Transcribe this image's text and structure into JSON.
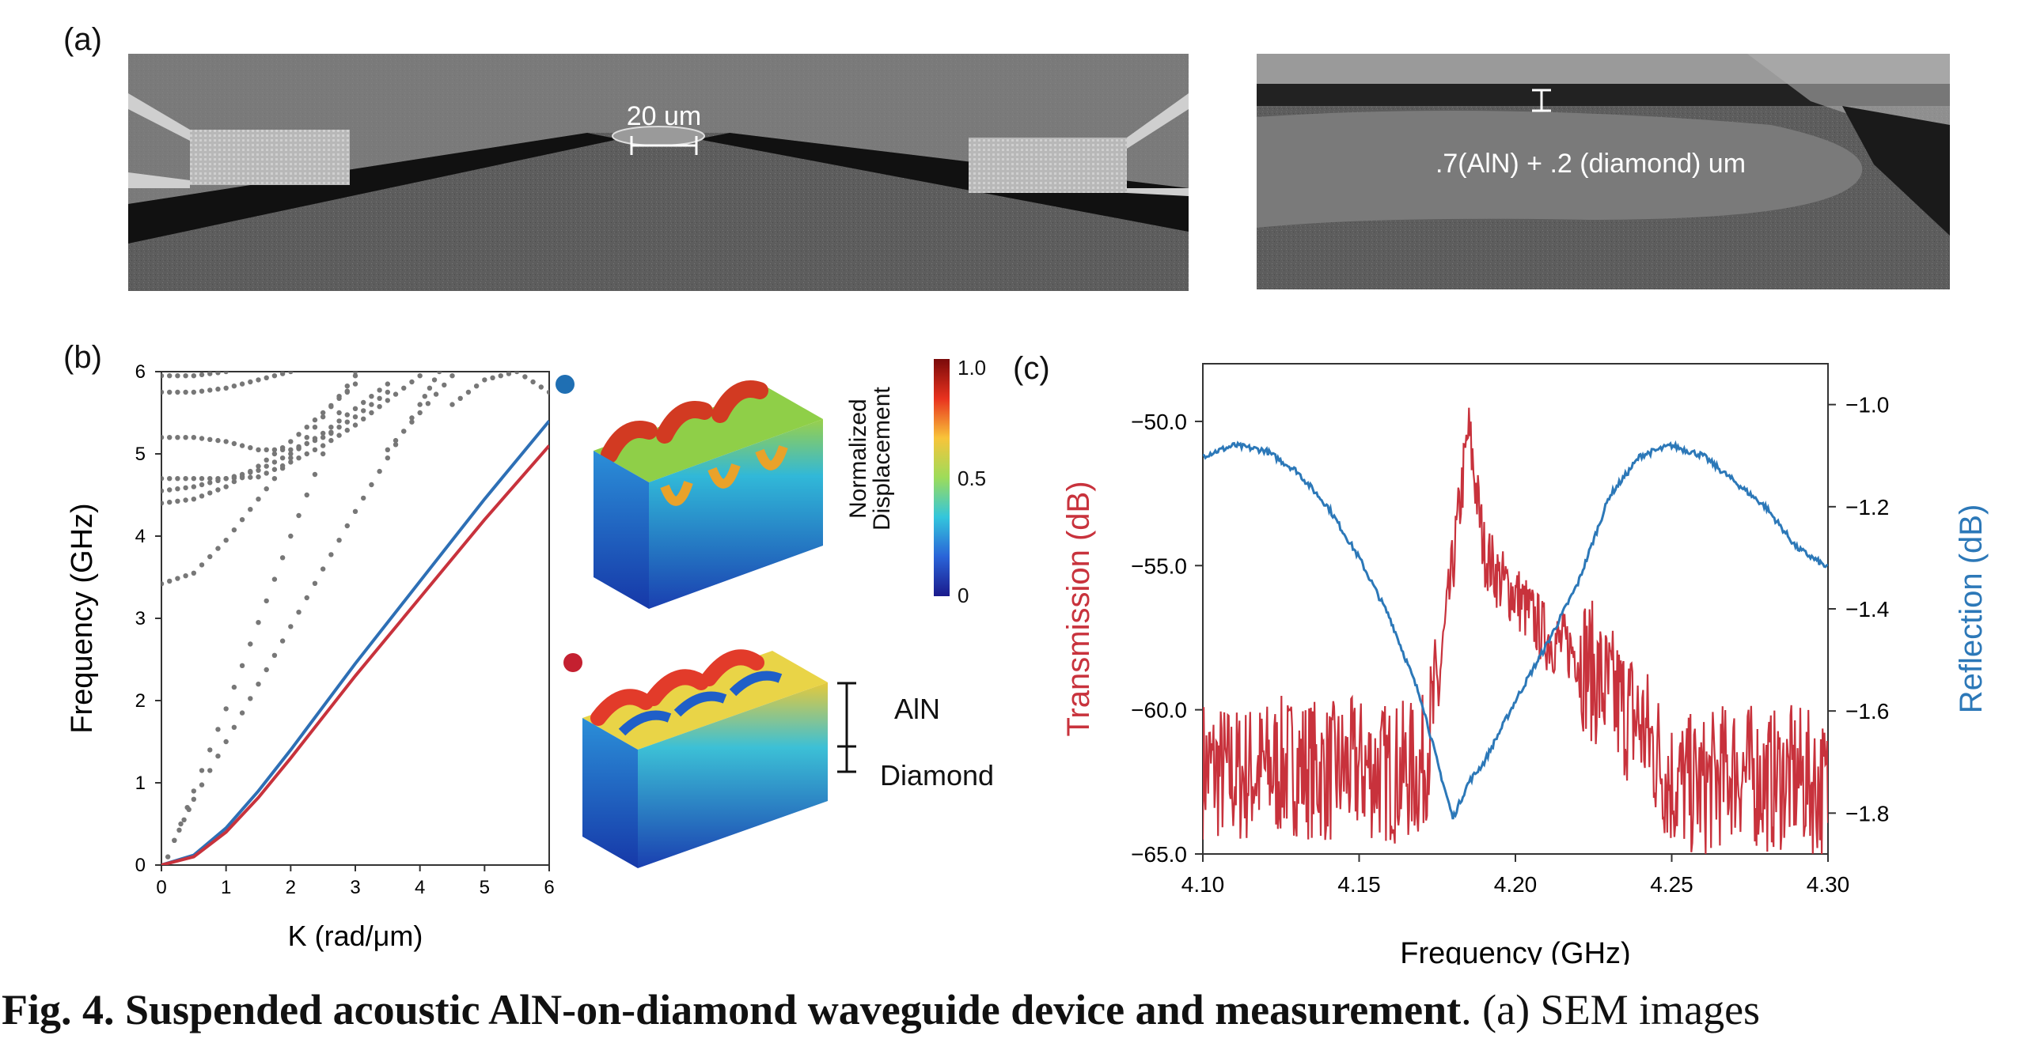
{
  "panels": {
    "a": {
      "label": "(a)",
      "sem_left_scale": "20 um",
      "sem_right_label": ".7(AlN) + .2 (diamond) um"
    },
    "b": {
      "label": "(b)",
      "colorbar_title": "Normalized Displacement",
      "colorbar_ticks": [
        "1.0",
        "0.5",
        "0"
      ],
      "layer_top": "AlN",
      "layer_bottom": "Diamond",
      "marker_colors": {
        "blue": "#1f6fb3",
        "red": "#c42030"
      }
    },
    "c": {
      "label": "(c)"
    }
  },
  "chart_data": [
    {
      "type": "line",
      "xlabel": "K (rad/μm)",
      "ylabel": "Frequency (GHz)",
      "xlim": [
        0,
        6
      ],
      "ylim": [
        0,
        6
      ],
      "x_ticks": [
        "0",
        "1",
        "2",
        "3",
        "4",
        "5",
        "6"
      ],
      "y_ticks": [
        "0",
        "1",
        "2",
        "3",
        "4",
        "5",
        "6"
      ],
      "grid": false,
      "series": [
        {
          "color": "#2d6fb5",
          "points": [
            [
              0,
              0
            ],
            [
              0.5,
              0.12
            ],
            [
              1,
              0.45
            ],
            [
              1.5,
              0.9
            ],
            [
              2,
              1.4
            ],
            [
              3,
              2.45
            ],
            [
              4,
              3.45
            ],
            [
              5,
              4.45
            ],
            [
              6,
              5.4
            ]
          ]
        },
        {
          "color": "#c8323c",
          "points": [
            [
              0,
              0
            ],
            [
              0.5,
              0.1
            ],
            [
              1,
              0.4
            ],
            [
              1.5,
              0.82
            ],
            [
              2,
              1.3
            ],
            [
              3,
              2.3
            ],
            [
              4,
              3.25
            ],
            [
              5,
              4.2
            ],
            [
              6,
              5.1
            ]
          ]
        }
      ],
      "dotted_series": [
        {
          "points": [
            [
              0,
              3.42
            ],
            [
              0.5,
              3.55
            ],
            [
              1,
              3.95
            ],
            [
              1.5,
              4.45
            ],
            [
              2,
              4.95
            ],
            [
              2.5,
              5.45
            ],
            [
              3,
              5.95
            ]
          ]
        },
        {
          "points": [
            [
              0,
              4.4
            ],
            [
              0.5,
              4.45
            ],
            [
              1,
              4.6
            ],
            [
              1.5,
              4.85
            ],
            [
              2,
              5.15
            ],
            [
              2.5,
              5.5
            ],
            [
              3,
              5.85
            ]
          ]
        },
        {
          "points": [
            [
              0,
              4.55
            ],
            [
              0.5,
              4.6
            ],
            [
              1,
              4.7
            ],
            [
              1.5,
              4.8
            ],
            [
              2,
              5.0
            ],
            [
              2.5,
              5.25
            ],
            [
              3,
              5.55
            ],
            [
              3.5,
              5.85
            ]
          ]
        },
        {
          "points": [
            [
              0,
              4.7
            ],
            [
              0.5,
              4.7
            ],
            [
              1,
              4.7
            ],
            [
              1.5,
              4.72
            ],
            [
              2,
              4.9
            ],
            [
              2.5,
              5.1
            ],
            [
              3,
              5.35
            ],
            [
              3.5,
              5.65
            ],
            [
              4,
              5.95
            ]
          ]
        },
        {
          "points": [
            [
              0,
              5.2
            ],
            [
              0.5,
              5.2
            ],
            [
              1,
              5.15
            ],
            [
              1.5,
              5.05
            ],
            [
              2,
              5.05
            ],
            [
              2.5,
              5.2
            ],
            [
              3,
              5.45
            ],
            [
              3.5,
              5.75
            ]
          ]
        },
        {
          "points": [
            [
              0,
              5.75
            ],
            [
              0.5,
              5.75
            ],
            [
              1,
              5.8
            ],
            [
              1.5,
              5.9
            ],
            [
              2,
              6.0
            ]
          ]
        },
        {
          "points": [
            [
              0,
              5.95
            ],
            [
              0.5,
              5.95
            ],
            [
              1,
              6.0
            ]
          ]
        },
        {
          "points": [
            [
              0.1,
              0.1
            ],
            [
              0.5,
              0.9
            ],
            [
              1,
              1.9
            ],
            [
              1.5,
              2.95
            ],
            [
              2,
              4.0
            ],
            [
              2.5,
              5.0
            ],
            [
              3,
              6.0
            ]
          ]
        },
        {
          "points": [
            [
              0.2,
              0.3
            ],
            [
              0.5,
              0.8
            ],
            [
              1,
              1.5
            ],
            [
              1.5,
              2.2
            ],
            [
              2,
              2.9
            ],
            [
              2.5,
              3.6
            ],
            [
              3,
              4.3
            ],
            [
              3.5,
              4.95
            ],
            [
              4,
              5.6
            ],
            [
              4.3,
              6.0
            ]
          ]
        },
        {
          "points": [
            [
              3.5,
              5.05
            ],
            [
              4,
              5.5
            ],
            [
              4.5,
              5.95
            ]
          ]
        },
        {
          "points": [
            [
              4.5,
              5.6
            ],
            [
              5,
              5.9
            ],
            [
              5.5,
              6.0
            ],
            [
              6,
              5.75
            ]
          ]
        }
      ]
    },
    {
      "type": "line",
      "xlabel": "Frequency (GHz)",
      "ylabel": "Transmission (dB)",
      "ylabel_right": "Reflection (dB)",
      "xlim": [
        4.1,
        4.3
      ],
      "ylim": [
        -65,
        -48
      ],
      "ylim_right": [
        -1.88,
        -0.92
      ],
      "x_ticks": [
        "4.10",
        "4.15",
        "4.20",
        "4.25",
        "4.30"
      ],
      "y_ticks": [
        "-65.0",
        "-60.0",
        "-55.0",
        "-50.0"
      ],
      "y_ticks_right": [
        "-1.8",
        "-1.6",
        "-1.4",
        "-1.2",
        "-1.0"
      ],
      "grid": false,
      "series": [
        {
          "name": "Transmission",
          "color": "#c8323c",
          "x": [
            4.1,
            4.11,
            4.12,
            4.13,
            4.14,
            4.15,
            4.16,
            4.17,
            4.175,
            4.18,
            4.185,
            4.19,
            4.195,
            4.2,
            4.21,
            4.22,
            4.23,
            4.24,
            4.25,
            4.26,
            4.27,
            4.28,
            4.29,
            4.3
          ],
          "y": [
            -62.0,
            -62.3,
            -62.1,
            -61.9,
            -62.2,
            -62.0,
            -62.2,
            -62.1,
            -59.5,
            -55.0,
            -50.3,
            -54.5,
            -55.5,
            -56.0,
            -57.5,
            -58.0,
            -59.5,
            -60.5,
            -62.5,
            -62.7,
            -62.0,
            -62.5,
            -62.3,
            -62.8
          ]
        },
        {
          "name": "Reflection",
          "color": "#2c78b8",
          "x": [
            4.1,
            4.11,
            4.12,
            4.13,
            4.14,
            4.15,
            4.16,
            4.17,
            4.175,
            4.18,
            4.185,
            4.19,
            4.2,
            4.21,
            4.22,
            4.23,
            4.24,
            4.25,
            4.26,
            4.27,
            4.28,
            4.29,
            4.3
          ],
          "y": [
            -1.1,
            -1.08,
            -1.09,
            -1.13,
            -1.2,
            -1.3,
            -1.42,
            -1.58,
            -1.7,
            -1.81,
            -1.74,
            -1.7,
            -1.58,
            -1.47,
            -1.35,
            -1.18,
            -1.1,
            -1.08,
            -1.1,
            -1.15,
            -1.2,
            -1.28,
            -1.32
          ]
        }
      ]
    }
  ],
  "caption": {
    "bold": "Fig. 4. Suspended acoustic AlN-on-diamond waveguide device and measurement",
    "rest": ". (a) SEM images"
  }
}
